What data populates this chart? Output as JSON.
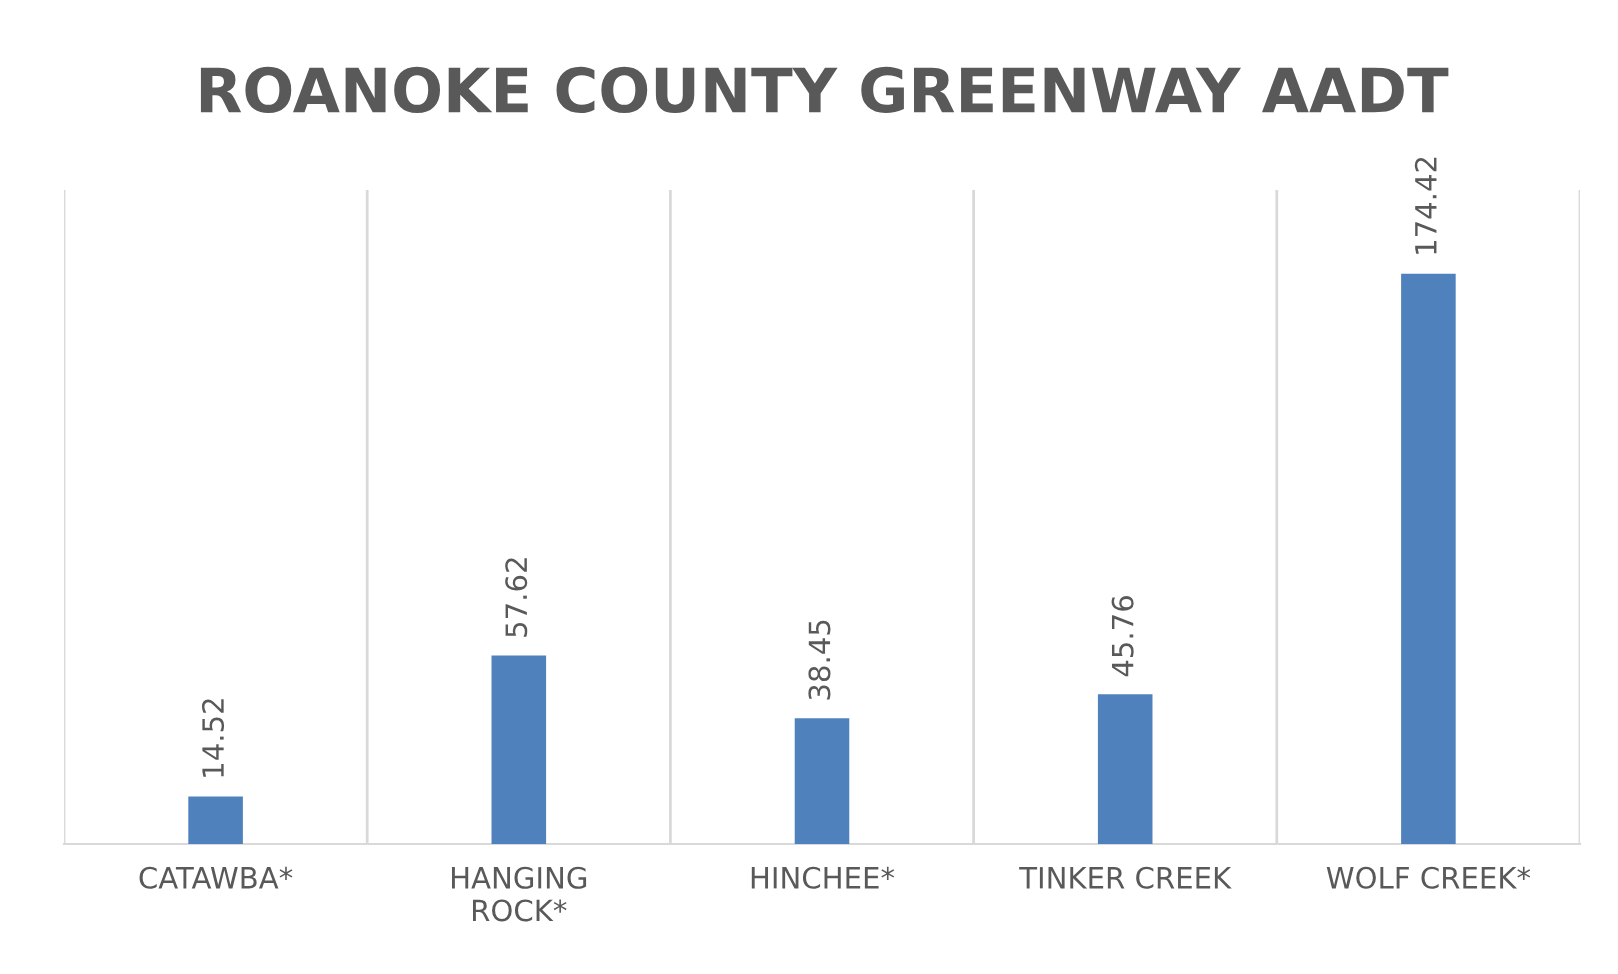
{
  "chart_data": {
    "type": "bar",
    "title": "ROANOKE COUNTY GREENWAY AADT",
    "categories": [
      "CATAWBA*",
      "HANGING ROCK*",
      "HINCHEE*",
      "TINKER CREEK",
      "WOLF CREEK*"
    ],
    "values": [
      14.52,
      57.62,
      38.45,
      45.76,
      174.42
    ],
    "color": "#4f81bd",
    "ylim": [
      0,
      200
    ],
    "tick_labels": "x",
    "grid": "x",
    "data_labels": true
  }
}
